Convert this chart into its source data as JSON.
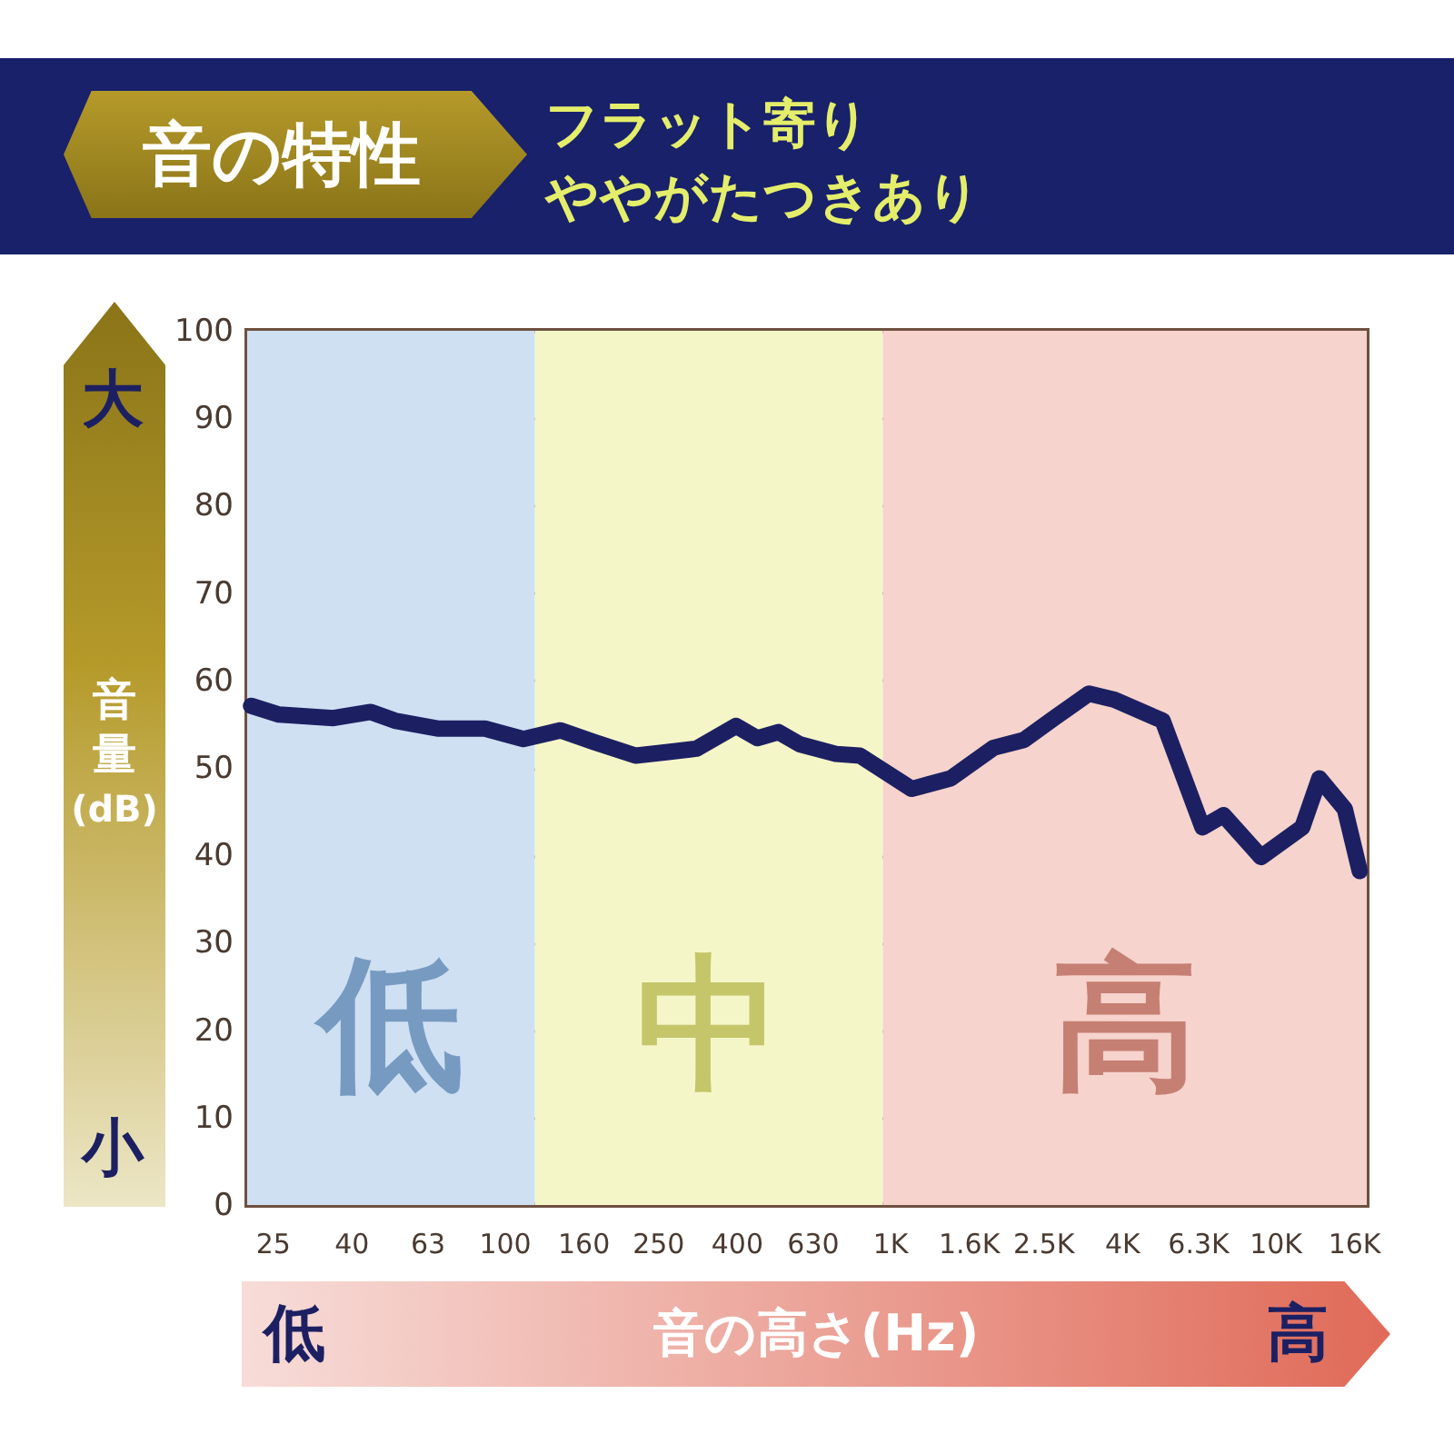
{
  "chart_data": {
    "type": "line",
    "title": "音の特性",
    "subtitle": "フラット寄り",
    "xlabel": "音の高さ(Hz)",
    "ylabel": "音量(dB)",
    "annotations": [
      "大",
      "小",
      "低",
      "高",
      "ややがたつきあり"
    ],
    "log": "x",
    "grid": "y",
    "xlim": [
      21.5,
      17300
    ],
    "ylim": [
      0,
      100
    ],
    "xticks": [
      25,
      40,
      63,
      100,
      160,
      250,
      400,
      630,
      {
        "value": 1000,
        "label": "1K"
      },
      {
        "value": 1600,
        "label": "1.6K"
      },
      {
        "value": 2500,
        "label": "2.5K"
      },
      {
        "value": 4000,
        "label": "4K"
      },
      {
        "value": 6300,
        "label": "6.3K"
      },
      {
        "value": 10000,
        "label": "10K"
      },
      {
        "value": 16000,
        "label": "16K"
      }
    ],
    "yticks": [
      0,
      10,
      20,
      30,
      40,
      50,
      60,
      70,
      80,
      90,
      100
    ],
    "bands": [
      {
        "axis": "x",
        "from": 21.5,
        "to": 120,
        "label": "低",
        "color": "#cfe0f3"
      },
      {
        "axis": "x",
        "from": 120,
        "to": 960,
        "label": "中",
        "color": "#f5f6c8"
      },
      {
        "axis": "x",
        "from": 960,
        "to": 17300,
        "label": "高",
        "color": "#f6d3cd"
      }
    ],
    "series": [
      {
        "color": "#1c2062",
        "line_style": "solid",
        "x": [
          22,
          26,
          36,
          45,
          52,
          67,
          89,
          112,
          140,
          170,
          219,
          263,
          315,
          399,
          453,
          514,
          584,
          725,
          837,
          1140,
          1440,
          1860,
          2230,
          2670,
          3290,
          3830,
          5110,
          6480,
          7350,
          9200,
          11770,
          13030,
          15170,
          16590
        ],
        "values": [
          57.1,
          56.1,
          55.7,
          56.4,
          55.4,
          54.5,
          54.5,
          53.3,
          54.3,
          53.0,
          51.4,
          51.8,
          52.2,
          54.8,
          53.4,
          54.1,
          52.7,
          51.6,
          51.4,
          47.6,
          48.8,
          52.3,
          53.2,
          55.7,
          58.5,
          57.8,
          55.4,
          43.2,
          44.6,
          39.8,
          43.2,
          48.8,
          45.3,
          38.2
        ]
      }
    ]
  }
}
